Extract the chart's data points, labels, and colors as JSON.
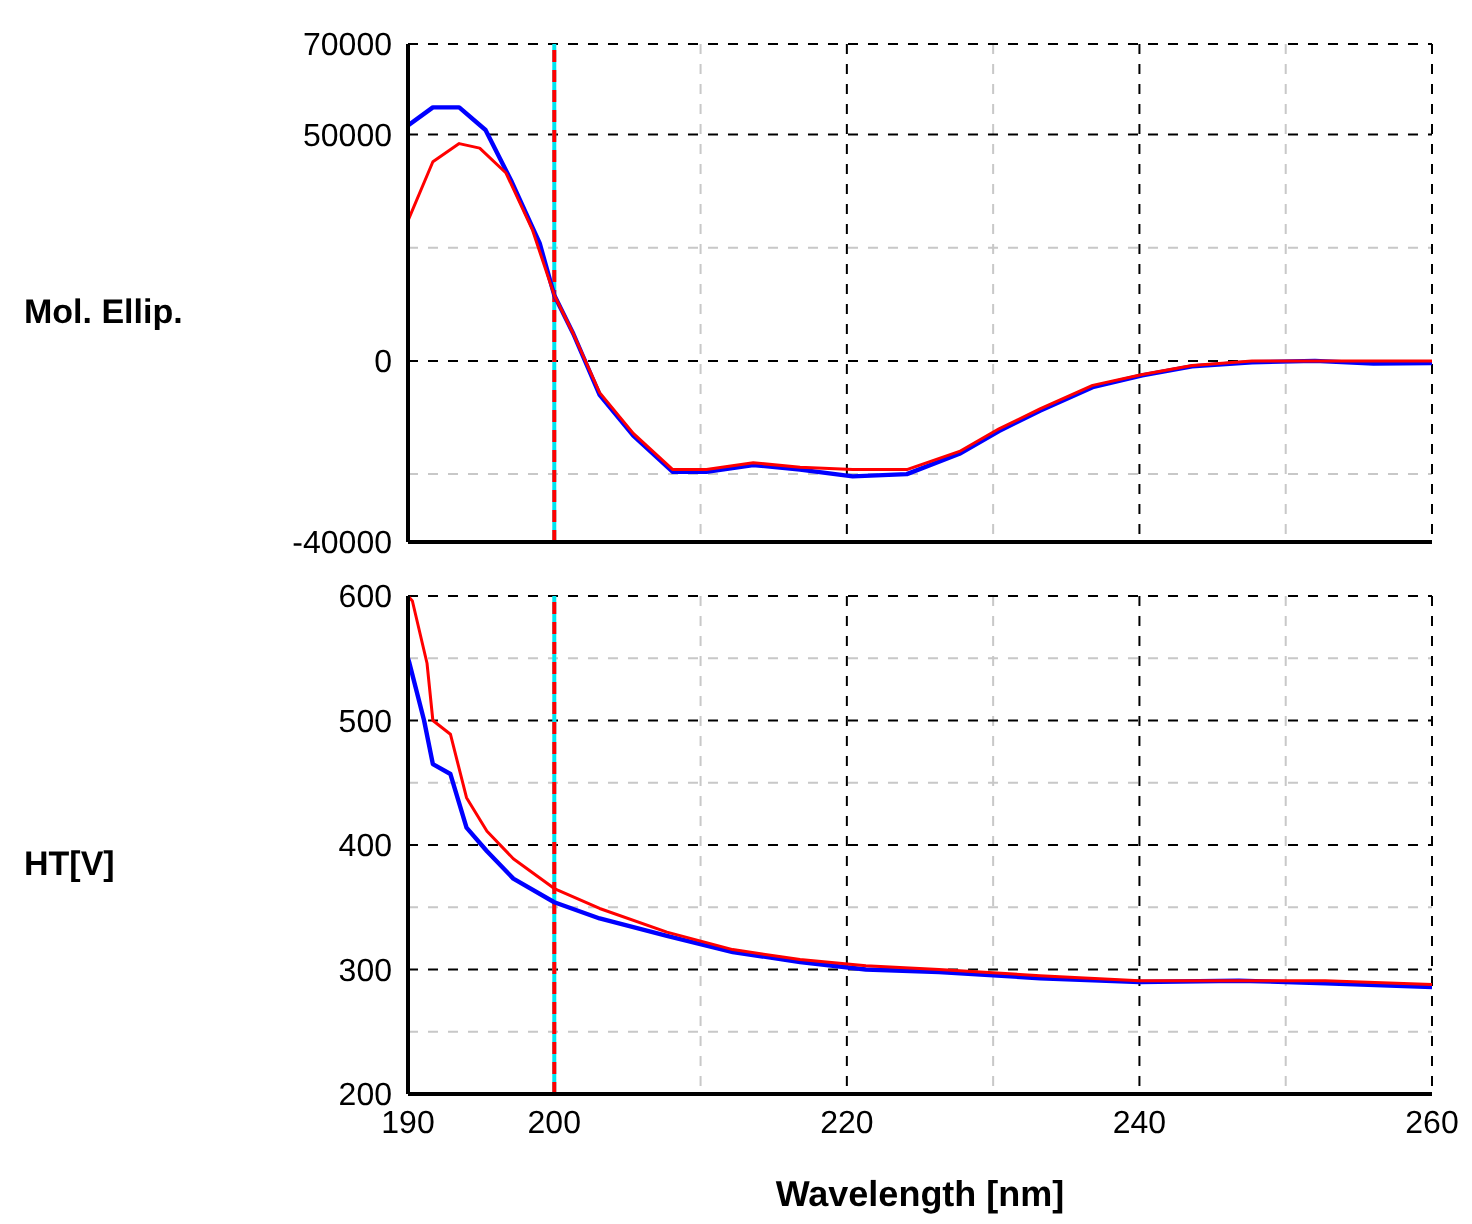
{
  "chart_data": [
    {
      "type": "line",
      "ylabel": "Mol. Ellip.",
      "xlim": [
        190,
        260
      ],
      "xticks": [
        190,
        200,
        {
          "value": 210,
          "label": null
        },
        220,
        {
          "value": 230,
          "label": null
        },
        240,
        {
          "value": 250,
          "label": null
        },
        260
      ],
      "ylim": [
        -40000,
        70000
      ],
      "yticks": [
        -40000,
        {
          "value": -25000,
          "label": null
        },
        0,
        {
          "value": 25000,
          "label": null
        },
        50000,
        70000
      ],
      "grid": true,
      "tick_labels": "y",
      "marker": "none",
      "line_style": "solid",
      "ref_lines": [
        {
          "axis": "x",
          "value": 200,
          "color": "#00e5ee",
          "line_style": "solid"
        },
        {
          "axis": "x",
          "value": 200,
          "color": "#ff0000",
          "line_style": "dashed"
        }
      ],
      "series": [
        {
          "color": "#0000ff",
          "x": [
            190,
            191.7,
            193.5,
            195.3,
            197.1,
            199,
            200,
            201.3,
            203.1,
            205.4,
            208.1,
            210.4,
            213.6,
            216.8,
            220.4,
            224.1,
            227.7,
            230.4,
            233.2,
            236.8,
            240.2,
            243.6,
            247.7,
            252,
            256,
            260
          ],
          "values": [
            52000,
            56000,
            56000,
            51000,
            39500,
            26000,
            14500,
            6000,
            -7500,
            -16500,
            -24500,
            -24500,
            -23000,
            -24000,
            -25500,
            -25000,
            -20500,
            -15500,
            -11000,
            -5800,
            -3200,
            -1200,
            -300,
            0,
            -600,
            -500
          ]
        },
        {
          "color": "#ff0000",
          "x": [
            190,
            191.7,
            193.5,
            194.9,
            196.7,
            198.5,
            200,
            201.3,
            203.1,
            205.4,
            208.1,
            210.4,
            213.6,
            216.8,
            220.4,
            224.1,
            227.7,
            230.4,
            233.2,
            236.8,
            240.2,
            243.6,
            247.7,
            252,
            256,
            260
          ],
          "values": [
            31000,
            44000,
            48000,
            47000,
            41500,
            29000,
            14500,
            6000,
            -7000,
            -16000,
            -24000,
            -24000,
            -22500,
            -23500,
            -24000,
            -24000,
            -20000,
            -15000,
            -10600,
            -5400,
            -3000,
            -1000,
            0,
            0,
            0,
            0
          ]
        }
      ]
    },
    {
      "type": "line",
      "xlabel": "Wavelength [nm]",
      "ylabel": "HT[V]",
      "xlim": [
        190,
        260
      ],
      "xticks": [
        190,
        200,
        {
          "value": 210,
          "label": null
        },
        220,
        {
          "value": 230,
          "label": null
        },
        240,
        {
          "value": 250,
          "label": null
        },
        260
      ],
      "ylim": [
        200,
        600
      ],
      "yticks": [
        200,
        {
          "value": 250,
          "label": null
        },
        300,
        {
          "value": 350,
          "label": null
        },
        400,
        {
          "value": 450,
          "label": null
        },
        500,
        {
          "value": 550,
          "label": null
        },
        600
      ],
      "grid": true,
      "marker": "none",
      "line_style": "solid",
      "ref_lines": [
        {
          "axis": "x",
          "value": 200,
          "color": "#00e5ee",
          "line_style": "solid"
        },
        {
          "axis": "x",
          "value": 200,
          "color": "#ff0000",
          "line_style": "dashed"
        }
      ],
      "series": [
        {
          "color": "#0000ff",
          "x": [
            190,
            190.1,
            191.1,
            191.7,
            192.9,
            194,
            195.4,
            197.2,
            200,
            203.1,
            207.7,
            212.2,
            216.8,
            221.3,
            226.3,
            233.2,
            240,
            246.8,
            252.7,
            260
          ],
          "values": [
            550,
            546,
            500,
            465,
            457,
            414,
            395,
            373,
            354,
            341,
            327,
            314,
            306,
            300,
            298,
            293,
            290,
            291,
            289,
            286
          ]
        },
        {
          "color": "#ff0000",
          "x": [
            190,
            190.3,
            191.3,
            191.7,
            192.9,
            194,
            195.4,
            197.2,
            200,
            203.1,
            207.7,
            212.2,
            216.8,
            221.3,
            226.3,
            233.2,
            240,
            246.8,
            252.7,
            260
          ],
          "values": [
            600,
            596,
            546,
            500,
            489,
            438,
            411,
            389,
            365,
            349,
            330,
            316,
            308,
            303,
            300,
            295,
            291,
            291,
            291,
            288
          ]
        }
      ]
    }
  ]
}
